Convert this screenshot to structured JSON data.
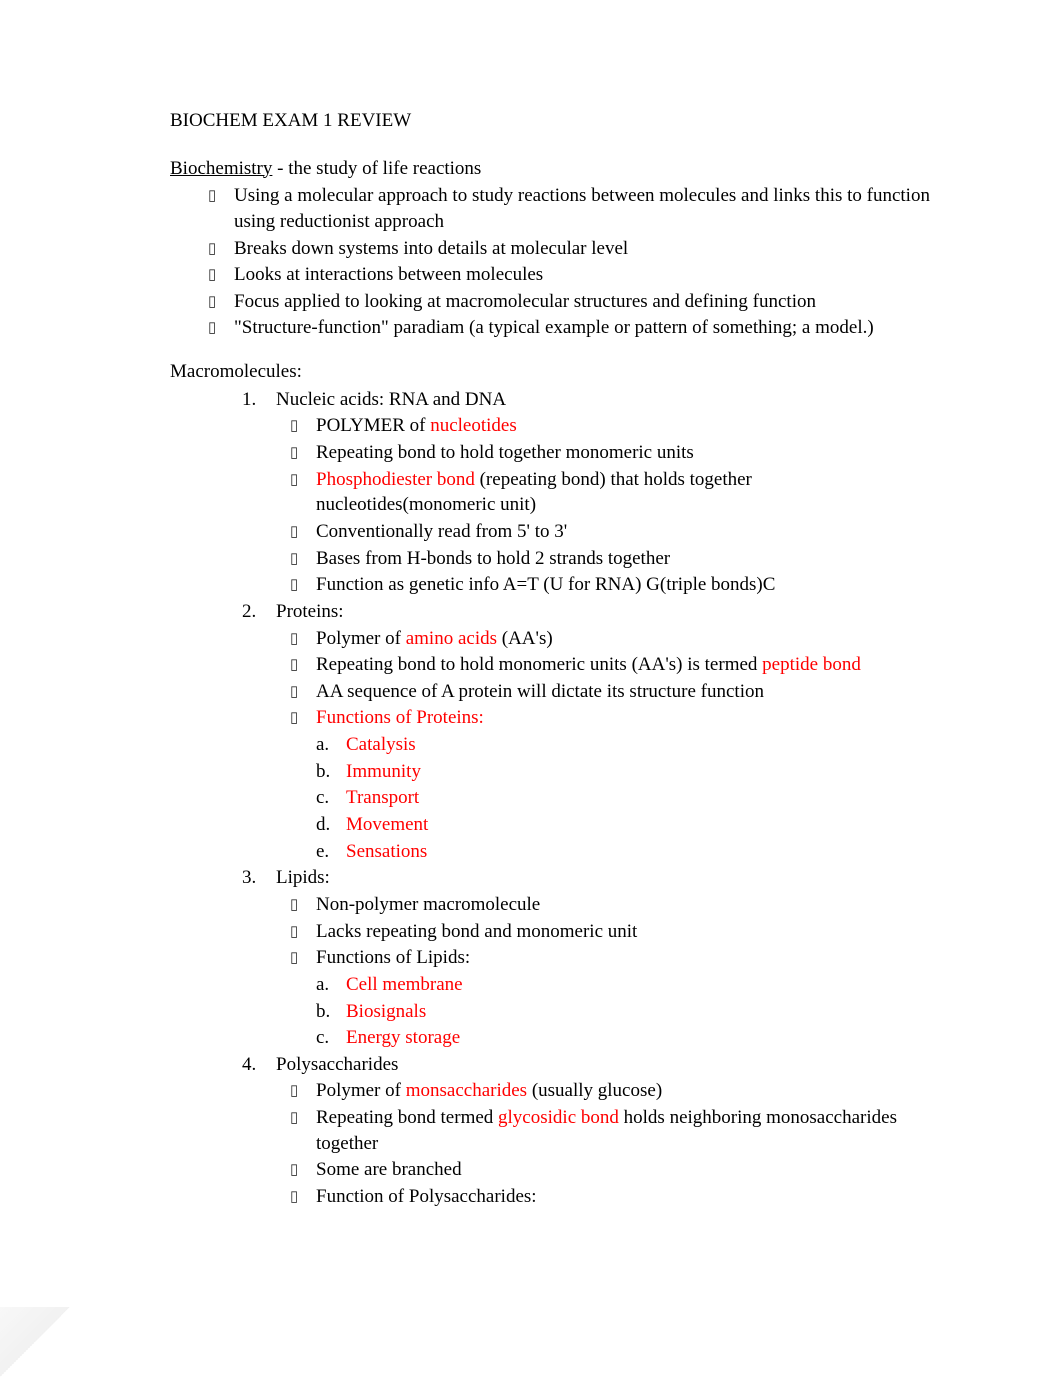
{
  "colors": {
    "text": "#000000",
    "highlight": "#ff0000",
    "background": "#ffffff",
    "bullet_glyph": "#333333"
  },
  "typography": {
    "font_family": "Times New Roman",
    "body_fontsize_pt": 14,
    "line_height": 1.35
  },
  "glyphs": {
    "hollow_box": "▯"
  },
  "title": "BIOCHEM EXAM 1 REVIEW",
  "intro": {
    "term": "Biochemistry",
    "definition_suffix": " - the study of life reactions",
    "bullets": [
      "Using a molecular approach to study reactions between molecules and links this to function using reductionist approach",
      "Breaks down systems into details at molecular level",
      "Looks at interactions between molecules",
      "Focus applied to looking at macromolecular structures and defining function"
    ],
    "paradigm": {
      "prefix": "\"Structure-function\" paradiam       (",
      "example": "a typical example or pattern of something; a model.",
      "suffix": ")"
    }
  },
  "macromolecules": {
    "heading": "Macromolecules:",
    "items": [
      {
        "num": "1.",
        "label": "Nucleic acids: RNA and DNA",
        "bullets": [
          {
            "segments": [
              {
                "t": "POLYMER of "
              },
              {
                "t": "nucleotides",
                "red": true
              }
            ]
          },
          {
            "segments": [
              {
                "t": "Repeating bond to hold together monomeric units"
              }
            ]
          },
          {
            "segments": [
              {
                "t": "Phosphodiester bond",
                "red": true
              },
              {
                "t": "  (repeating bond) that holds together nucleotides(monomeric unit)"
              }
            ]
          },
          {
            "segments": [
              {
                "t": "Conventionally read from 5' to 3'"
              }
            ]
          },
          {
            "segments": [
              {
                "t": "Bases from H-bonds to hold 2 strands together"
              }
            ]
          },
          {
            "segments": [
              {
                "t": "Function as genetic info A=T (U for RNA) G(triple bonds)C"
              }
            ]
          }
        ]
      },
      {
        "num": "2.",
        "label": "Proteins:",
        "bullets": [
          {
            "segments": [
              {
                "t": "Polymer of "
              },
              {
                "t": "amino acids",
                "red": true
              },
              {
                "t": " (AA's)"
              }
            ]
          },
          {
            "segments": [
              {
                "t": "Repeating bond to hold monomeric units (AA's) is termed     "
              },
              {
                "t": "peptide bond",
                "red": true
              }
            ]
          },
          {
            "segments": [
              {
                "t": "AA sequence of A protein will dictate its structure function"
              }
            ]
          },
          {
            "segments": [
              {
                "t": "Functions of Proteins:",
                "red": true
              }
            ]
          }
        ],
        "letters": [
          {
            "l": "a.",
            "segments": [
              {
                "t": "Catalysis",
                "red": true
              }
            ]
          },
          {
            "l": "b.",
            "segments": [
              {
                "t": "Immunity",
                "red": true
              }
            ]
          },
          {
            "l": "c.",
            "segments": [
              {
                "t": "Transport",
                "red": true
              }
            ]
          },
          {
            "l": "d.",
            "segments": [
              {
                "t": "Movement",
                "red": true
              }
            ]
          },
          {
            "l": "e.",
            "segments": [
              {
                "t": " Sensations",
                "red": true
              }
            ]
          }
        ]
      },
      {
        "num": "3.",
        "label": "Lipids:",
        "bullets": [
          {
            "segments": [
              {
                "t": "Non-polymer macromolecule"
              }
            ]
          },
          {
            "segments": [
              {
                "t": "Lacks repeating bond and monomeric unit"
              }
            ]
          },
          {
            "segments": [
              {
                "t": "Functions of Lipids:"
              }
            ]
          }
        ],
        "letters": [
          {
            "l": "a.",
            "segments": [
              {
                "t": "Cell membrane",
                "red": true
              }
            ]
          },
          {
            "l": "b.",
            "segments": [
              {
                "t": "Biosignals",
                "red": true
              }
            ]
          },
          {
            "l": "c.",
            "segments": [
              {
                "t": "Energy storage",
                "red": true
              }
            ]
          }
        ]
      },
      {
        "num": "4.",
        "label": "Polysaccharides",
        "bullets": [
          {
            "segments": [
              {
                "t": "Polymer of "
              },
              {
                "t": "monsaccharides",
                "red": true
              },
              {
                "t": " (usually glucose)"
              }
            ]
          },
          {
            "segments": [
              {
                "t": "Repeating bond termed   "
              },
              {
                "t": "glycosidic bond",
                "red": true
              },
              {
                "t": " holds neighboring monosaccharides together"
              }
            ]
          },
          {
            "segments": [
              {
                "t": "Some are branched"
              }
            ]
          },
          {
            "segments": [
              {
                "t": "Function of Polysaccharides:"
              }
            ]
          }
        ]
      }
    ]
  }
}
